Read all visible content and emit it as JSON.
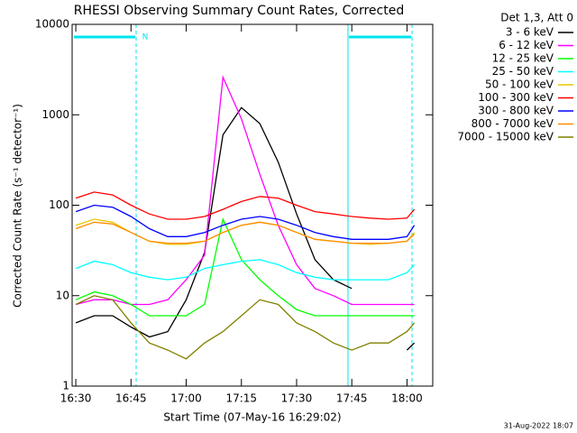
{
  "chart_data": {
    "type": "line",
    "title": "RHESSI Observing Summary Count Rates, Corrected",
    "x_label": "Start Time (07-May-16 16:29:02)",
    "y_label": "Corrected Count Rate (s⁻¹ detector⁻¹)",
    "legend_title": "Det 1,3, Att 0",
    "footer": "31-Aug-2022 18:07",
    "annotation": "N",
    "log_y": true,
    "xlim": [
      "16:29",
      "18:07"
    ],
    "xticks": [
      "16:30",
      "16:45",
      "17:00",
      "17:15",
      "17:30",
      "17:45",
      "18:00"
    ],
    "ylim": [
      1,
      10000
    ],
    "yticks": [
      1,
      10,
      100,
      1000,
      10000
    ],
    "x": [
      "16:30",
      "16:35",
      "16:40",
      "16:45",
      "16:50",
      "16:55",
      "17:00",
      "17:05",
      "17:10",
      "17:15",
      "17:20",
      "17:25",
      "17:30",
      "17:35",
      "17:40",
      "17:45",
      "17:50",
      "17:55",
      "18:00",
      "18:02"
    ],
    "series": [
      {
        "name": "3 - 6 keV",
        "color": "#000000",
        "values": [
          5,
          6,
          6,
          4.5,
          3.5,
          4,
          9,
          30,
          600,
          1200,
          800,
          300,
          80,
          25,
          15,
          12,
          null,
          null,
          2.5,
          3
        ]
      },
      {
        "name": "6 - 12 keV",
        "color": "#ff00ff",
        "values": [
          8,
          9,
          9,
          8,
          8,
          9,
          15,
          28,
          2600,
          900,
          220,
          60,
          22,
          12,
          10,
          8,
          8,
          8,
          8,
          8
        ]
      },
      {
        "name": "12 - 25 keV",
        "color": "#00ff00",
        "values": [
          9,
          11,
          10,
          8,
          6,
          6,
          6,
          8,
          70,
          25,
          15,
          10,
          7,
          6,
          6,
          6,
          6,
          6,
          6,
          6
        ]
      },
      {
        "name": "25 - 50 keV",
        "color": "#00ffff",
        "values": [
          20,
          24,
          22,
          18,
          16,
          15,
          16,
          20,
          22,
          24,
          25,
          22,
          18,
          16,
          15,
          15,
          15,
          15,
          18,
          22
        ]
      },
      {
        "name": "50 - 100 keV",
        "color": "#e6c800",
        "values": [
          60,
          70,
          65,
          50,
          40,
          37,
          37,
          40,
          50,
          60,
          65,
          60,
          50,
          42,
          40,
          38,
          37,
          38,
          40,
          50
        ]
      },
      {
        "name": "100 - 300 keV",
        "color": "#ff0000",
        "values": [
          120,
          140,
          130,
          100,
          80,
          70,
          70,
          75,
          90,
          110,
          125,
          120,
          100,
          85,
          80,
          75,
          72,
          70,
          72,
          90
        ]
      },
      {
        "name": "300 - 800 keV",
        "color": "#0000ff",
        "values": [
          85,
          100,
          95,
          75,
          55,
          45,
          45,
          50,
          60,
          70,
          75,
          70,
          60,
          50,
          45,
          42,
          42,
          42,
          45,
          60
        ]
      },
      {
        "name": "800 - 7000 keV",
        "color": "#ff8c00",
        "values": [
          55,
          65,
          62,
          50,
          40,
          38,
          38,
          40,
          50,
          60,
          65,
          60,
          50,
          42,
          40,
          38,
          38,
          38,
          40,
          48
        ]
      },
      {
        "name": "7000 - 15000 keV",
        "color": "#808000",
        "values": [
          8,
          10,
          9,
          5,
          3,
          2.5,
          2,
          3,
          4,
          6,
          9,
          8,
          5,
          4,
          3,
          2.5,
          3,
          3,
          4,
          5
        ]
      }
    ]
  }
}
